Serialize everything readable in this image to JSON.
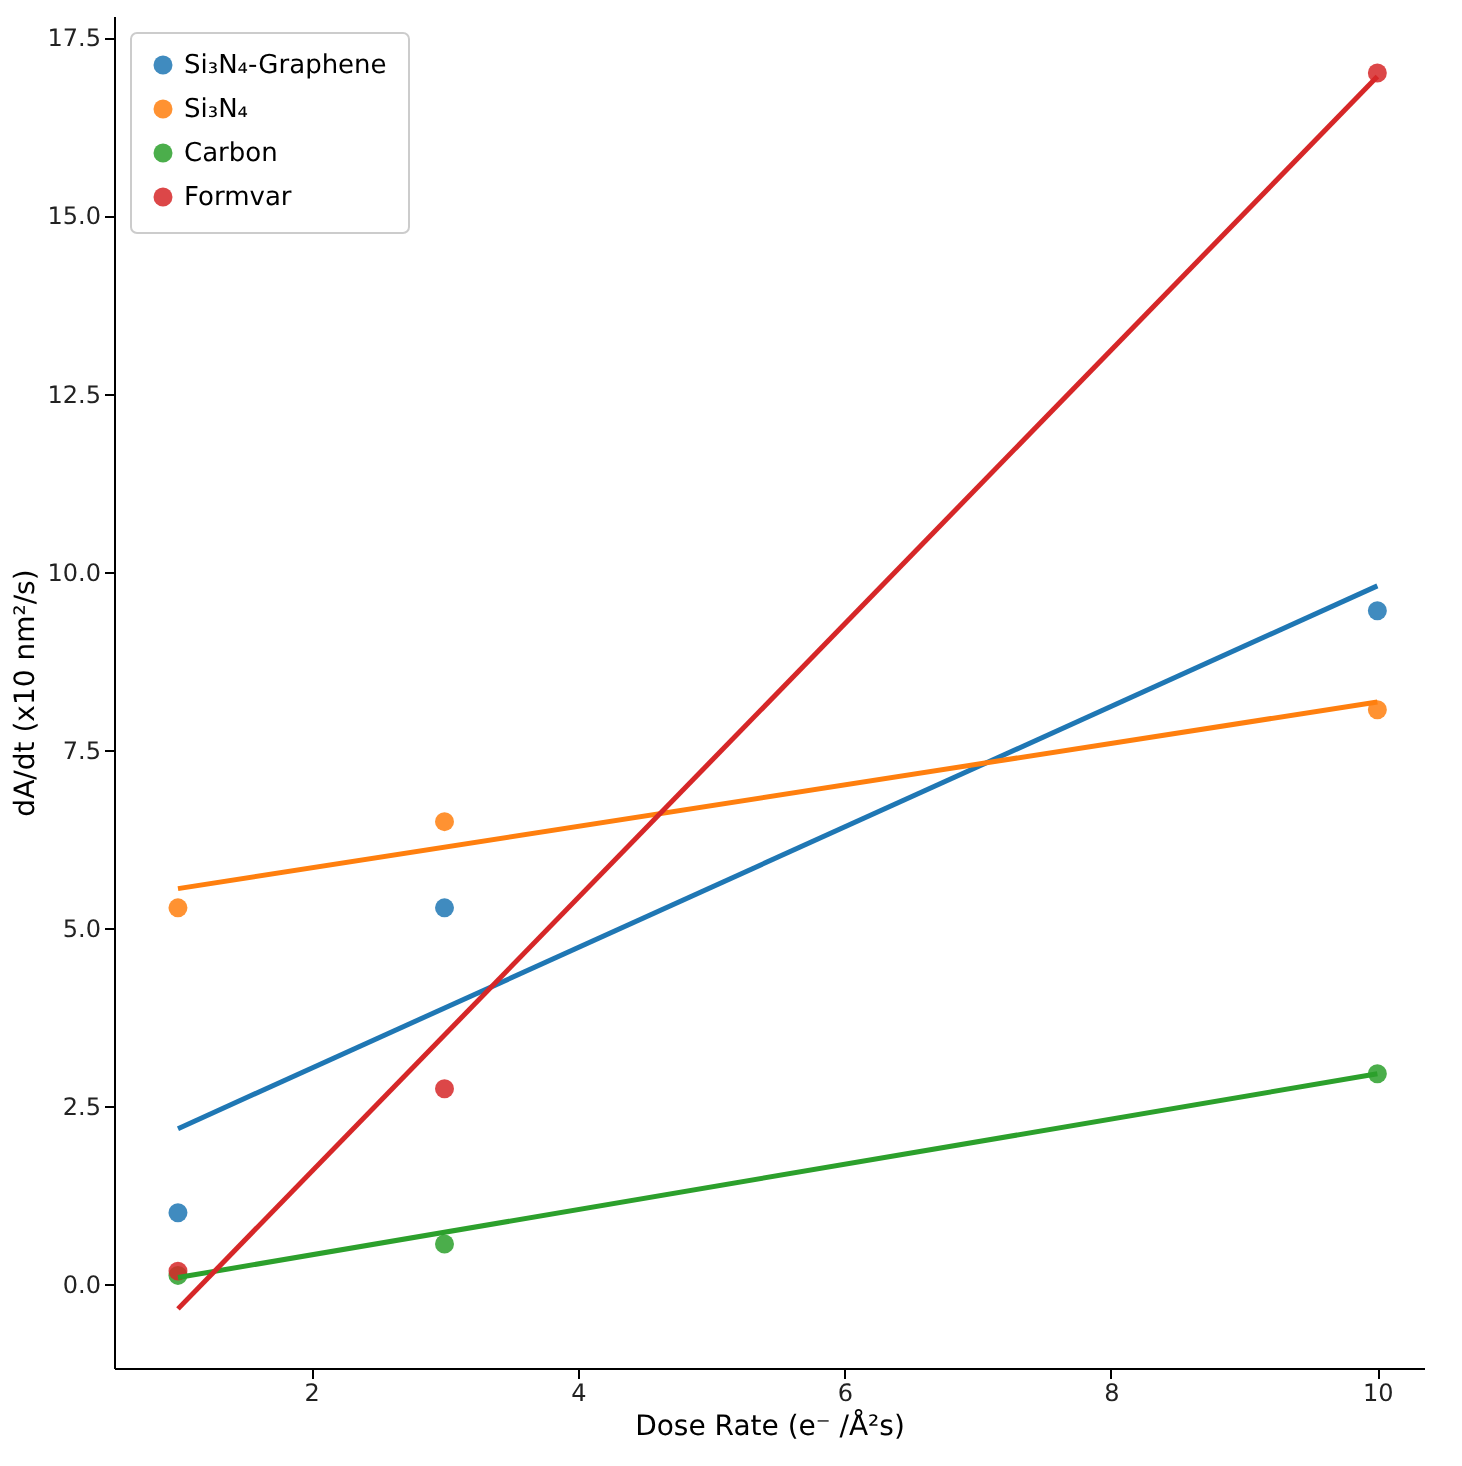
{
  "chart_data": {
    "type": "scatter",
    "xlabel": "Dose Rate (e⁻ /Å²s)",
    "ylabel": "dA/dt (x10 nm²/s)",
    "series": [
      {
        "name": "Si₃N₄-Graphene",
        "color": "#1f77b4",
        "x": [
          1,
          3,
          10
        ],
        "values": [
          1.0,
          5.28,
          9.45
        ]
      },
      {
        "name": "Si₃N₄",
        "color": "#ff7f0e",
        "x": [
          1,
          3,
          10
        ],
        "values": [
          5.28,
          6.49,
          8.06
        ]
      },
      {
        "name": "Carbon",
        "color": "#2ca02c",
        "x": [
          1,
          3,
          10
        ],
        "values": [
          0.12,
          0.56,
          2.95
        ]
      },
      {
        "name": "Formvar",
        "color": "#d62728",
        "x": [
          1,
          3,
          10
        ],
        "values": [
          0.18,
          2.74,
          17.0
        ]
      },
      {
        "type": "line",
        "color": "#1f77b4",
        "marker": "none",
        "x": [
          1,
          10
        ],
        "values": [
          2.18,
          9.8
        ]
      },
      {
        "type": "line",
        "color": "#ff7f0e",
        "marker": "none",
        "x": [
          1,
          10
        ],
        "values": [
          5.55,
          8.17
        ]
      },
      {
        "type": "line",
        "color": "#2ca02c",
        "marker": "none",
        "x": [
          1,
          10
        ],
        "values": [
          0.09,
          2.95
        ]
      },
      {
        "type": "line",
        "color": "#d62728",
        "marker": "none",
        "x": [
          1,
          10
        ],
        "values": [
          -0.35,
          16.95
        ]
      }
    ],
    "xlim": [
      0.52,
      10.35
    ],
    "ylim": [
      -1.18,
      17.8
    ],
    "xticks": [
      2,
      4,
      6,
      8,
      10
    ],
    "yticks": [
      {
        "value": 0,
        "label": "0.0"
      },
      {
        "value": 2.5,
        "label": "2.5"
      },
      {
        "value": 5,
        "label": "5.0"
      },
      {
        "value": 7.5,
        "label": "7.5"
      },
      {
        "value": 10,
        "label": "10.0"
      },
      {
        "value": 12.5,
        "label": "12.5"
      },
      {
        "value": 15,
        "label": "15.0"
      },
      {
        "value": 17.5,
        "label": "17.5"
      }
    ],
    "legend": "top left",
    "grid": false,
    "marker": "circle",
    "line_style": "solid"
  }
}
